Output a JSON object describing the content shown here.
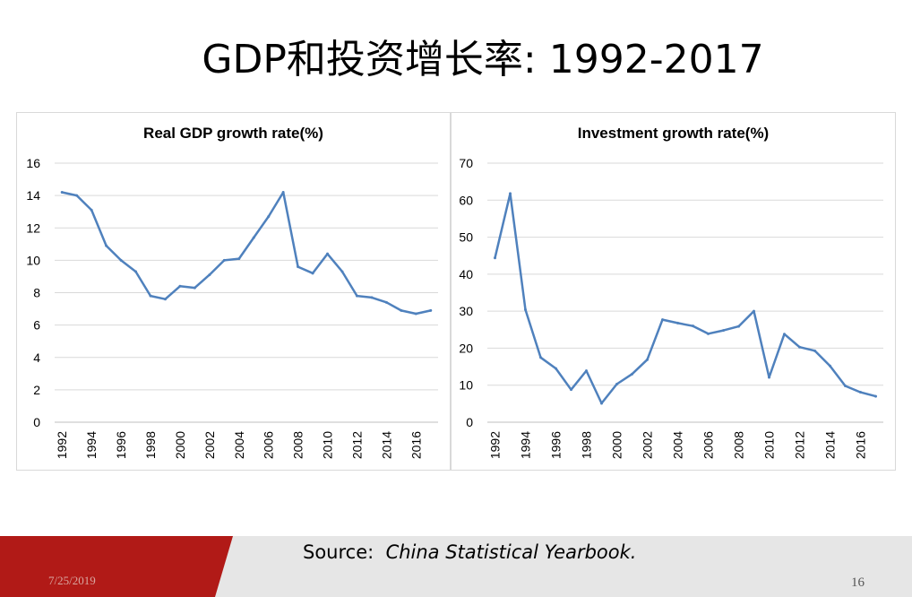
{
  "slide": {
    "title": "GDP和投资增长率: 1992-2017",
    "source_label": "Source:",
    "source_text": "China Statistical Yearbook.",
    "date": "7/25/2019",
    "page_number": "16"
  },
  "colors": {
    "line": "#4f81bd",
    "grid": "#d9d9d9",
    "footer_red": "#b11a17",
    "footer_gray": "#e6e6e6"
  },
  "chart_data": [
    {
      "type": "line",
      "title": "Real GDP growth rate(%)",
      "xlabel": "",
      "ylabel": "",
      "ylim": [
        0,
        16
      ],
      "yticks": [
        0,
        2,
        4,
        6,
        8,
        10,
        12,
        14,
        16
      ],
      "xlim": [
        1992,
        2017
      ],
      "xticks": [
        "1992",
        "1994",
        "1996",
        "1998",
        "2000",
        "2002",
        "2004",
        "2006",
        "2008",
        "2010",
        "2012",
        "2014",
        "2016"
      ],
      "grid": true,
      "legend": "none",
      "series": [
        {
          "x": [
            1992,
            1993,
            1994,
            1995,
            1996,
            1997,
            1998,
            1999,
            2000,
            2001,
            2002,
            2003,
            2004,
            2005,
            2006,
            2007,
            2008,
            2009,
            2010,
            2011,
            2012,
            2013,
            2014,
            2015,
            2016,
            2017
          ],
          "values": [
            14.2,
            14.0,
            13.1,
            10.9,
            10.0,
            9.3,
            7.8,
            7.6,
            8.4,
            8.3,
            9.1,
            10.0,
            10.1,
            11.4,
            12.7,
            14.2,
            9.6,
            9.2,
            10.4,
            9.3,
            7.8,
            7.7,
            7.4,
            6.9,
            6.7,
            6.9
          ]
        }
      ]
    },
    {
      "type": "line",
      "title": "Investment growth rate(%)",
      "xlabel": "",
      "ylabel": "",
      "ylim": [
        0,
        70
      ],
      "yticks": [
        0,
        10,
        20,
        30,
        40,
        50,
        60,
        70
      ],
      "xlim": [
        1992,
        2017
      ],
      "xticks": [
        "1992",
        "1994",
        "1996",
        "1998",
        "2000",
        "2002",
        "2004",
        "2006",
        "2008",
        "2010",
        "2012",
        "2014",
        "2016"
      ],
      "grid": true,
      "legend": "none",
      "series": [
        {
          "x": [
            1992,
            1993,
            1994,
            1995,
            1996,
            1997,
            1998,
            1999,
            2000,
            2001,
            2002,
            2003,
            2004,
            2005,
            2006,
            2007,
            2008,
            2009,
            2010,
            2011,
            2012,
            2013,
            2014,
            2015,
            2016,
            2017
          ],
          "values": [
            44.4,
            61.8,
            30.4,
            17.5,
            14.5,
            8.8,
            13.9,
            5.1,
            10.3,
            13.0,
            16.9,
            27.7,
            26.8,
            26.0,
            23.9,
            24.8,
            25.9,
            30.0,
            12.1,
            23.8,
            20.3,
            19.3,
            15.2,
            9.8,
            8.1,
            7.0
          ]
        }
      ]
    }
  ]
}
